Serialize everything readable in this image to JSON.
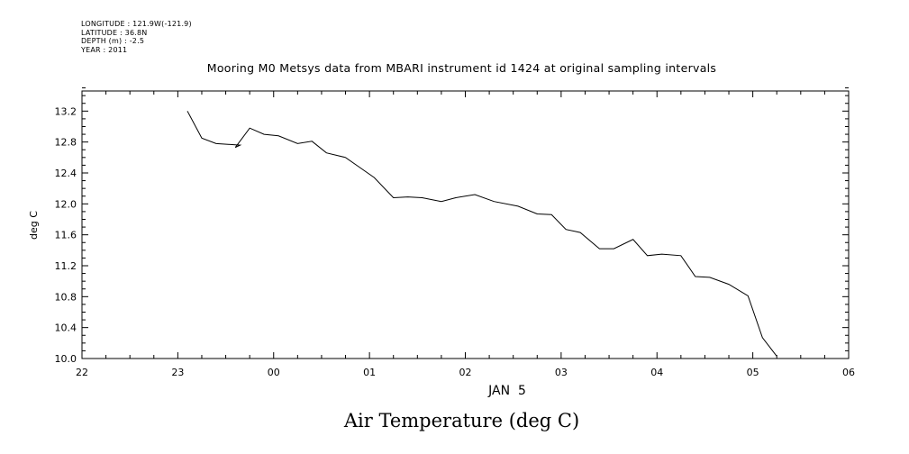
{
  "meta": {
    "longitude": "LONGITUDE : 121.9W(-121.9)",
    "latitude": "LATITUDE : 36.8N",
    "depth": "DEPTH (m) : -2.5",
    "year": "YEAR : 2011"
  },
  "chart_data": {
    "type": "line",
    "title": "Mooring M0 Metsys data from MBARI instrument id 1424 at original sampling intervals",
    "bottom_title": "Air Temperature (deg C)",
    "xlabel": "JAN  5",
    "ylabel": "deg C",
    "xlim": [
      -2,
      6
    ],
    "ylim": [
      10.0,
      13.2
    ],
    "x_tick_labels": [
      "22",
      "23",
      "00",
      "01",
      "02",
      "03",
      "04",
      "05",
      "06"
    ],
    "y_ticks": [
      10.0,
      10.4,
      10.8,
      11.2,
      11.6,
      12.0,
      12.4,
      12.8,
      13.2
    ],
    "y_tick_labels": [
      "10.0",
      "10.4",
      "10.8",
      "11.2",
      "11.6",
      "12.0",
      "12.4",
      "12.8",
      "13.2"
    ],
    "grid": false,
    "series": [
      {
        "x": [
          -0.9,
          -0.75,
          -0.6,
          -0.35,
          -0.4,
          -0.25,
          -0.1,
          0.05,
          0.25,
          0.4,
          0.55,
          0.75,
          0.9,
          1.05,
          1.25,
          1.4,
          1.55,
          1.75,
          1.9,
          2.1,
          2.3,
          2.55,
          2.75,
          2.9,
          3.05,
          3.2,
          3.4,
          3.55,
          3.75,
          3.9,
          4.05,
          4.25,
          4.4,
          4.55,
          4.75,
          4.95,
          5.1,
          5.25
        ],
        "values": [
          13.2,
          12.85,
          12.78,
          12.76,
          12.73,
          12.98,
          12.9,
          12.88,
          12.78,
          12.81,
          12.66,
          12.6,
          12.47,
          12.34,
          12.08,
          12.09,
          12.08,
          12.03,
          12.08,
          12.12,
          12.03,
          11.97,
          11.87,
          11.86,
          11.67,
          11.63,
          11.42,
          11.42,
          11.54,
          11.33,
          11.35,
          11.33,
          11.06,
          11.05,
          10.96,
          10.81,
          10.27,
          10.03
        ]
      }
    ],
    "color": "#000000"
  }
}
